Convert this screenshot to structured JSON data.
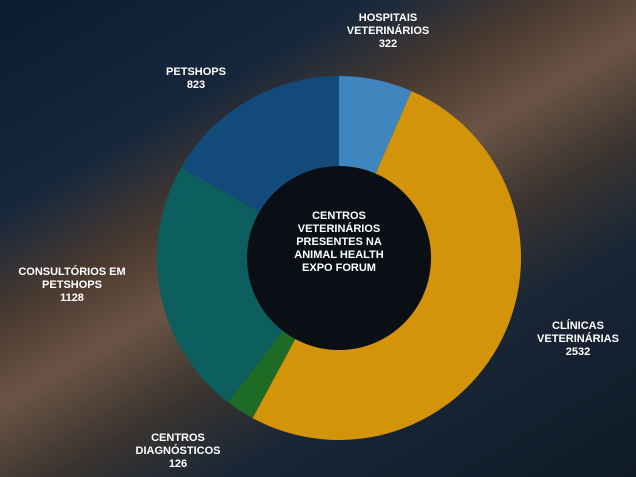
{
  "chart_data": {
    "type": "pie",
    "center_text": "CENTROS VETERINÁRIOS PRESENTES NA ANIMAL HEALTH EXPO FORUM",
    "categories": [
      "HOSPITAIS VETERINÁRIOS",
      "CLÍNICAS VETERINÁRIAS",
      "CENTROS DIAGNÓSTICOS",
      "CONSULTÓRIOS EM PETSHOPS",
      "PETSHOPS"
    ],
    "values": [
      322,
      2532,
      126,
      1128,
      823
    ],
    "colors": [
      "#3f86bf",
      "#d4940a",
      "#1d6b24",
      "#0d5e5e",
      "#134a7c"
    ]
  }
}
